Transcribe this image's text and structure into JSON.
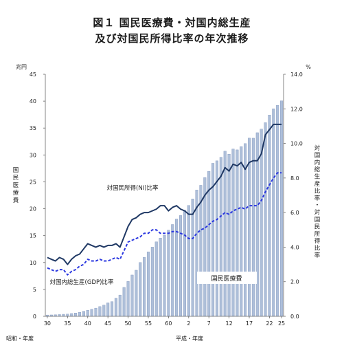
{
  "chart_data": {
    "type": "bar",
    "title_line1": "図１ 国民医療費・対国内総生産",
    "title_line2": "及び対国民所得比率の年次推移",
    "left_axis": {
      "unit": "兆円",
      "label": "国民医療費",
      "ylim": [
        0,
        45
      ],
      "ticks": [
        "0",
        "5",
        "10",
        "15",
        "20",
        "25",
        "30",
        "35",
        "40",
        "45"
      ]
    },
    "right_axis": {
      "unit": "%",
      "label": "対国内総生産比率・対国民所得比率",
      "ylim": [
        0,
        14
      ],
      "ticks": [
        "0.0",
        "2.0",
        "4.0",
        "6.0",
        "8.0",
        "10.0",
        "12.0",
        "14.0"
      ]
    },
    "x_tick_labels": [
      "30",
      "35",
      "40",
      "45",
      "50",
      "55",
      "60",
      "2",
      "7",
      "12",
      "17",
      "22",
      "25"
    ],
    "x_era_labels": {
      "showa": "昭和・年度",
      "heisei": "平成・年度"
    },
    "years": [
      "S30",
      "S31",
      "S32",
      "S33",
      "S34",
      "S35",
      "S36",
      "S37",
      "S38",
      "S39",
      "S40",
      "S41",
      "S42",
      "S43",
      "S44",
      "S45",
      "S46",
      "S47",
      "S48",
      "S49",
      "S50",
      "S51",
      "S52",
      "S53",
      "S54",
      "S55",
      "S56",
      "S57",
      "S58",
      "S59",
      "S60",
      "S61",
      "S62",
      "S63",
      "H1",
      "H2",
      "H3",
      "H4",
      "H5",
      "H6",
      "H7",
      "H8",
      "H9",
      "H10",
      "H11",
      "H12",
      "H13",
      "H14",
      "H15",
      "H16",
      "H17",
      "H18",
      "H19",
      "H20",
      "H21",
      "H22",
      "H23",
      "H24",
      "H25"
    ],
    "series": [
      {
        "name": "国民医療費",
        "axis": "left",
        "kind": "bar",
        "color": "#aebfd9",
        "values": [
          0.24,
          0.26,
          0.29,
          0.33,
          0.38,
          0.41,
          0.52,
          0.61,
          0.74,
          0.94,
          1.12,
          1.32,
          1.52,
          1.81,
          2.09,
          2.5,
          2.73,
          3.38,
          3.95,
          5.38,
          6.48,
          7.68,
          8.57,
          10.0,
          10.95,
          11.98,
          12.87,
          13.85,
          14.54,
          15.09,
          16.02,
          17.07,
          18.08,
          18.74,
          19.73,
          20.61,
          21.83,
          23.48,
          24.36,
          25.79,
          26.96,
          28.45,
          28.91,
          29.58,
          30.7,
          30.14,
          31.1,
          30.95,
          31.54,
          32.11,
          33.13,
          33.12,
          34.14,
          34.81,
          36.0,
          37.42,
          38.59,
          39.21,
          40.06
        ]
      },
      {
        "name": "対国民所得(NI)比率",
        "axis": "right",
        "kind": "line",
        "color": "#1f3864",
        "values": [
          3.4,
          3.3,
          3.2,
          3.4,
          3.3,
          3.0,
          3.3,
          3.5,
          3.6,
          3.9,
          4.2,
          4.1,
          4.0,
          4.1,
          4.0,
          4.1,
          4.1,
          4.2,
          4.0,
          4.6,
          5.2,
          5.6,
          5.7,
          5.9,
          6.0,
          6.0,
          6.1,
          6.2,
          6.4,
          6.4,
          6.1,
          6.3,
          6.4,
          6.2,
          6.1,
          5.9,
          5.9,
          6.3,
          6.6,
          7.0,
          7.3,
          7.5,
          7.8,
          8.1,
          8.6,
          8.4,
          8.8,
          8.7,
          8.9,
          8.5,
          8.9,
          9.0,
          9.0,
          9.4,
          10.5,
          10.8,
          11.1,
          11.1,
          11.1
        ]
      },
      {
        "name": "対国内総生産(GDP)比率",
        "axis": "right",
        "kind": "line",
        "dashed": true,
        "color": "#2a37e0",
        "values": [
          2.8,
          2.7,
          2.6,
          2.7,
          2.7,
          2.4,
          2.6,
          2.7,
          2.9,
          3.0,
          3.3,
          3.2,
          3.2,
          3.3,
          3.2,
          3.2,
          3.3,
          3.4,
          3.3,
          3.8,
          4.3,
          4.4,
          4.5,
          4.6,
          4.8,
          4.8,
          5.0,
          5.0,
          4.8,
          4.8,
          4.8,
          4.9,
          4.9,
          4.8,
          4.7,
          4.5,
          4.5,
          4.8,
          5.0,
          5.1,
          5.3,
          5.5,
          5.6,
          5.8,
          6.0,
          5.9,
          6.1,
          6.2,
          6.3,
          6.2,
          6.4,
          6.4,
          6.4,
          6.7,
          7.2,
          7.6,
          8.0,
          8.3,
          8.3
        ]
      }
    ],
    "annotations": {
      "ni": "対国民所得(NI)比率",
      "gdp": "対国内総生産(GDP)比率",
      "cost": "国民医療費"
    }
  }
}
